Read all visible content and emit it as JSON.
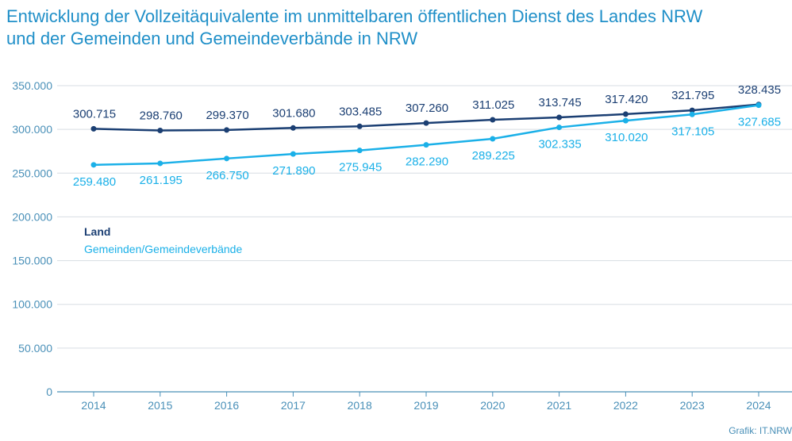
{
  "chart_data": {
    "type": "line",
    "title_lines": [
      "Entwicklung der Vollzeitäquivalente im unmittelbaren öffentlichen Dienst des Landes NRW",
      "und der Gemeinden und Gemeindeverbände in NRW"
    ],
    "x": [
      "2014",
      "2015",
      "2016",
      "2017",
      "2018",
      "2019",
      "2020",
      "2021",
      "2022",
      "2023",
      "2024"
    ],
    "y_ticks": [
      "0",
      "50.000",
      "100.000",
      "150.000",
      "200.000",
      "250.000",
      "300.000",
      "350.000"
    ],
    "ylim": [
      0,
      350000
    ],
    "grid": true,
    "legend_position": "center-left",
    "series": [
      {
        "name": "Land",
        "color": "#1b3f73",
        "values": [
          300715,
          298760,
          299370,
          301680,
          303485,
          307260,
          311025,
          313745,
          317420,
          321795,
          328435
        ],
        "labels": [
          "300.715",
          "298.760",
          "299.370",
          "301.680",
          "303.485",
          "307.260",
          "311.025",
          "313.745",
          "317.420",
          "321.795",
          "328.435"
        ]
      },
      {
        "name": "Gemeinden/Gemeindeverbände",
        "color": "#1ab0e8",
        "values": [
          259480,
          261195,
          266750,
          271890,
          275945,
          282290,
          289225,
          302335,
          310020,
          317105,
          327685
        ],
        "labels": [
          "259.480",
          "261.195",
          "266.750",
          "271.890",
          "275.945",
          "282.290",
          "289.225",
          "302.335",
          "310.020",
          "317.105",
          "327.685"
        ]
      }
    ],
    "axis_color": "#4a90b8",
    "source": "Grafik: IT.NRW"
  }
}
